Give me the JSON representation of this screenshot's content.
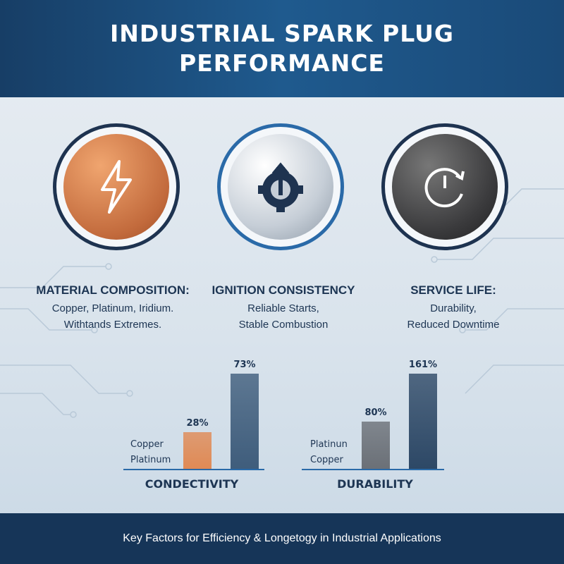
{
  "header": {
    "title": "INDUSTRIAL SPARK PLUG PERFORMANCE"
  },
  "features": [
    {
      "icon": "lightning-bolt-icon",
      "title": "MATERIAL COMPOSITION:",
      "lines": [
        "Copper, Platinum, Iridium.",
        "Withtands Extremes."
      ]
    },
    {
      "icon": "gear-power-icon",
      "title": "IGNITION CONSISTENCY",
      "lines": [
        "Reliable Starts,",
        "Stable Combustion"
      ]
    },
    {
      "icon": "clock-refresh-icon",
      "title": "SERVICE LIFE:",
      "lines": [
        "Durability,",
        "Reduced Downtime"
      ]
    }
  ],
  "chart_data": [
    {
      "type": "bar",
      "title": "CONDECTIVITY",
      "legend_labels": [
        "Copper",
        "Platinum"
      ],
      "categories": [
        "Copper",
        "Platinum"
      ],
      "values": [
        28,
        73
      ],
      "value_labels": [
        "28%",
        "73%"
      ],
      "colors": [
        "#e08a55",
        "#3f5d7c"
      ],
      "grid": false
    },
    {
      "type": "bar",
      "title": "DURABILITY",
      "legend_labels": [
        "Platinun",
        "Copper"
      ],
      "categories": [
        "Platinun",
        "Copper"
      ],
      "values": [
        80,
        161
      ],
      "value_labels": [
        "80%",
        "161%"
      ],
      "colors": [
        "#6b7077",
        "#2d4866"
      ],
      "grid": false
    }
  ],
  "footer": {
    "text": "Key Factors for Efficiency & Longetogy in Industrial Applications"
  }
}
